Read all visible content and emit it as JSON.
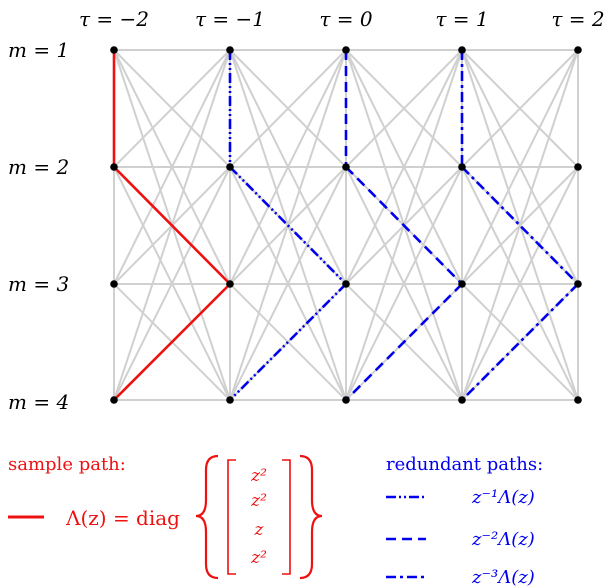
{
  "tau_labels": [
    "τ = −2",
    "τ = −1",
    "τ = 0",
    "τ = 1",
    "τ = 2"
  ],
  "m_labels": [
    "m = 1",
    "m = 2",
    "m = 3",
    "m = 4"
  ],
  "colors": {
    "grid": "#d0d0d0",
    "node": "#000000",
    "sample": "#ee1111",
    "redundant": "#0000ee"
  },
  "sample_path": {
    "title": "sample path:",
    "lambda": "Λ(z) = diag",
    "entries": [
      "z²",
      "z²",
      "z",
      "z²"
    ],
    "nodes": [
      [
        0,
        0
      ],
      [
        0,
        1
      ],
      [
        1,
        2
      ],
      [
        0,
        3
      ]
    ]
  },
  "redundant_paths": {
    "title": "redundant paths:",
    "legend": [
      {
        "style": "dashdotdot",
        "label": "z⁻¹Λ(z)"
      },
      {
        "style": "dashed",
        "label": "z⁻²Λ(z)"
      },
      {
        "style": "dashdot",
        "label": "z⁻³Λ(z)"
      }
    ],
    "paths": [
      {
        "style": "dashdotdot",
        "nodes": [
          [
            1,
            0
          ],
          [
            1,
            1
          ],
          [
            2,
            2
          ],
          [
            1,
            3
          ]
        ]
      },
      {
        "style": "dashed",
        "nodes": [
          [
            2,
            0
          ],
          [
            2,
            1
          ],
          [
            3,
            2
          ],
          [
            2,
            3
          ]
        ]
      },
      {
        "style": "dashdot",
        "nodes": [
          [
            3,
            0
          ],
          [
            3,
            1
          ],
          [
            4,
            2
          ],
          [
            3,
            3
          ]
        ]
      }
    ]
  }
}
